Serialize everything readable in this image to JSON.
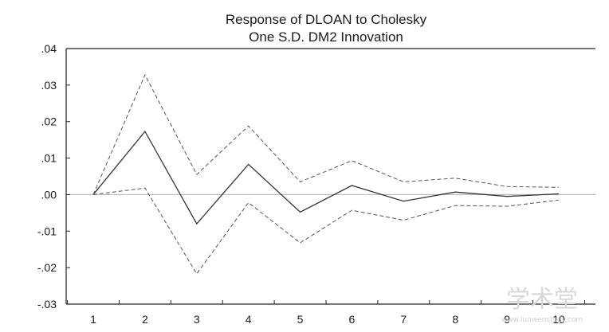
{
  "chart_data": {
    "type": "line",
    "title": "Response of DLOAN to Cholesky",
    "subtitle": "One S.D. DM2 Innovation",
    "xlabel": "",
    "ylabel": "",
    "x": [
      1,
      2,
      3,
      4,
      5,
      6,
      7,
      8,
      9,
      10
    ],
    "x_tick_labels": [
      "1",
      "2",
      "3",
      "4",
      "5",
      "6",
      "7",
      "8",
      "9",
      "10"
    ],
    "y_tick_values": [
      0.04,
      0.03,
      0.02,
      0.01,
      0.0,
      -0.01,
      -0.02,
      -0.03
    ],
    "y_tick_labels": [
      ".04",
      ".03",
      ".02",
      ".01",
      ".00",
      "-.01",
      "-.02",
      "-.03"
    ],
    "ylim": [
      -0.03,
      0.04
    ],
    "xlim": [
      1,
      10
    ],
    "grid": false,
    "zero_line": true,
    "series": [
      {
        "style": "solid",
        "color": "#333333",
        "values": [
          0.0,
          0.0173,
          -0.008,
          0.0083,
          -0.0048,
          0.0025,
          -0.0018,
          0.0007,
          -0.0005,
          0.0002
        ]
      },
      {
        "style": "dashed",
        "color": "#555555",
        "values": [
          0.0,
          0.0328,
          0.0055,
          0.0188,
          0.0035,
          0.0093,
          0.0035,
          0.0045,
          0.0022,
          0.002
        ]
      },
      {
        "style": "dashed",
        "color": "#555555",
        "values": [
          0.0,
          0.0018,
          -0.0217,
          -0.0022,
          -0.0132,
          -0.0043,
          -0.007,
          -0.003,
          -0.0032,
          -0.0015
        ]
      }
    ],
    "colors": {
      "zero_line": "#b0b0b0",
      "axis": "#222222"
    }
  },
  "watermark": {
    "text": "学术堂",
    "sub": "www.lunwenstudy.com"
  }
}
